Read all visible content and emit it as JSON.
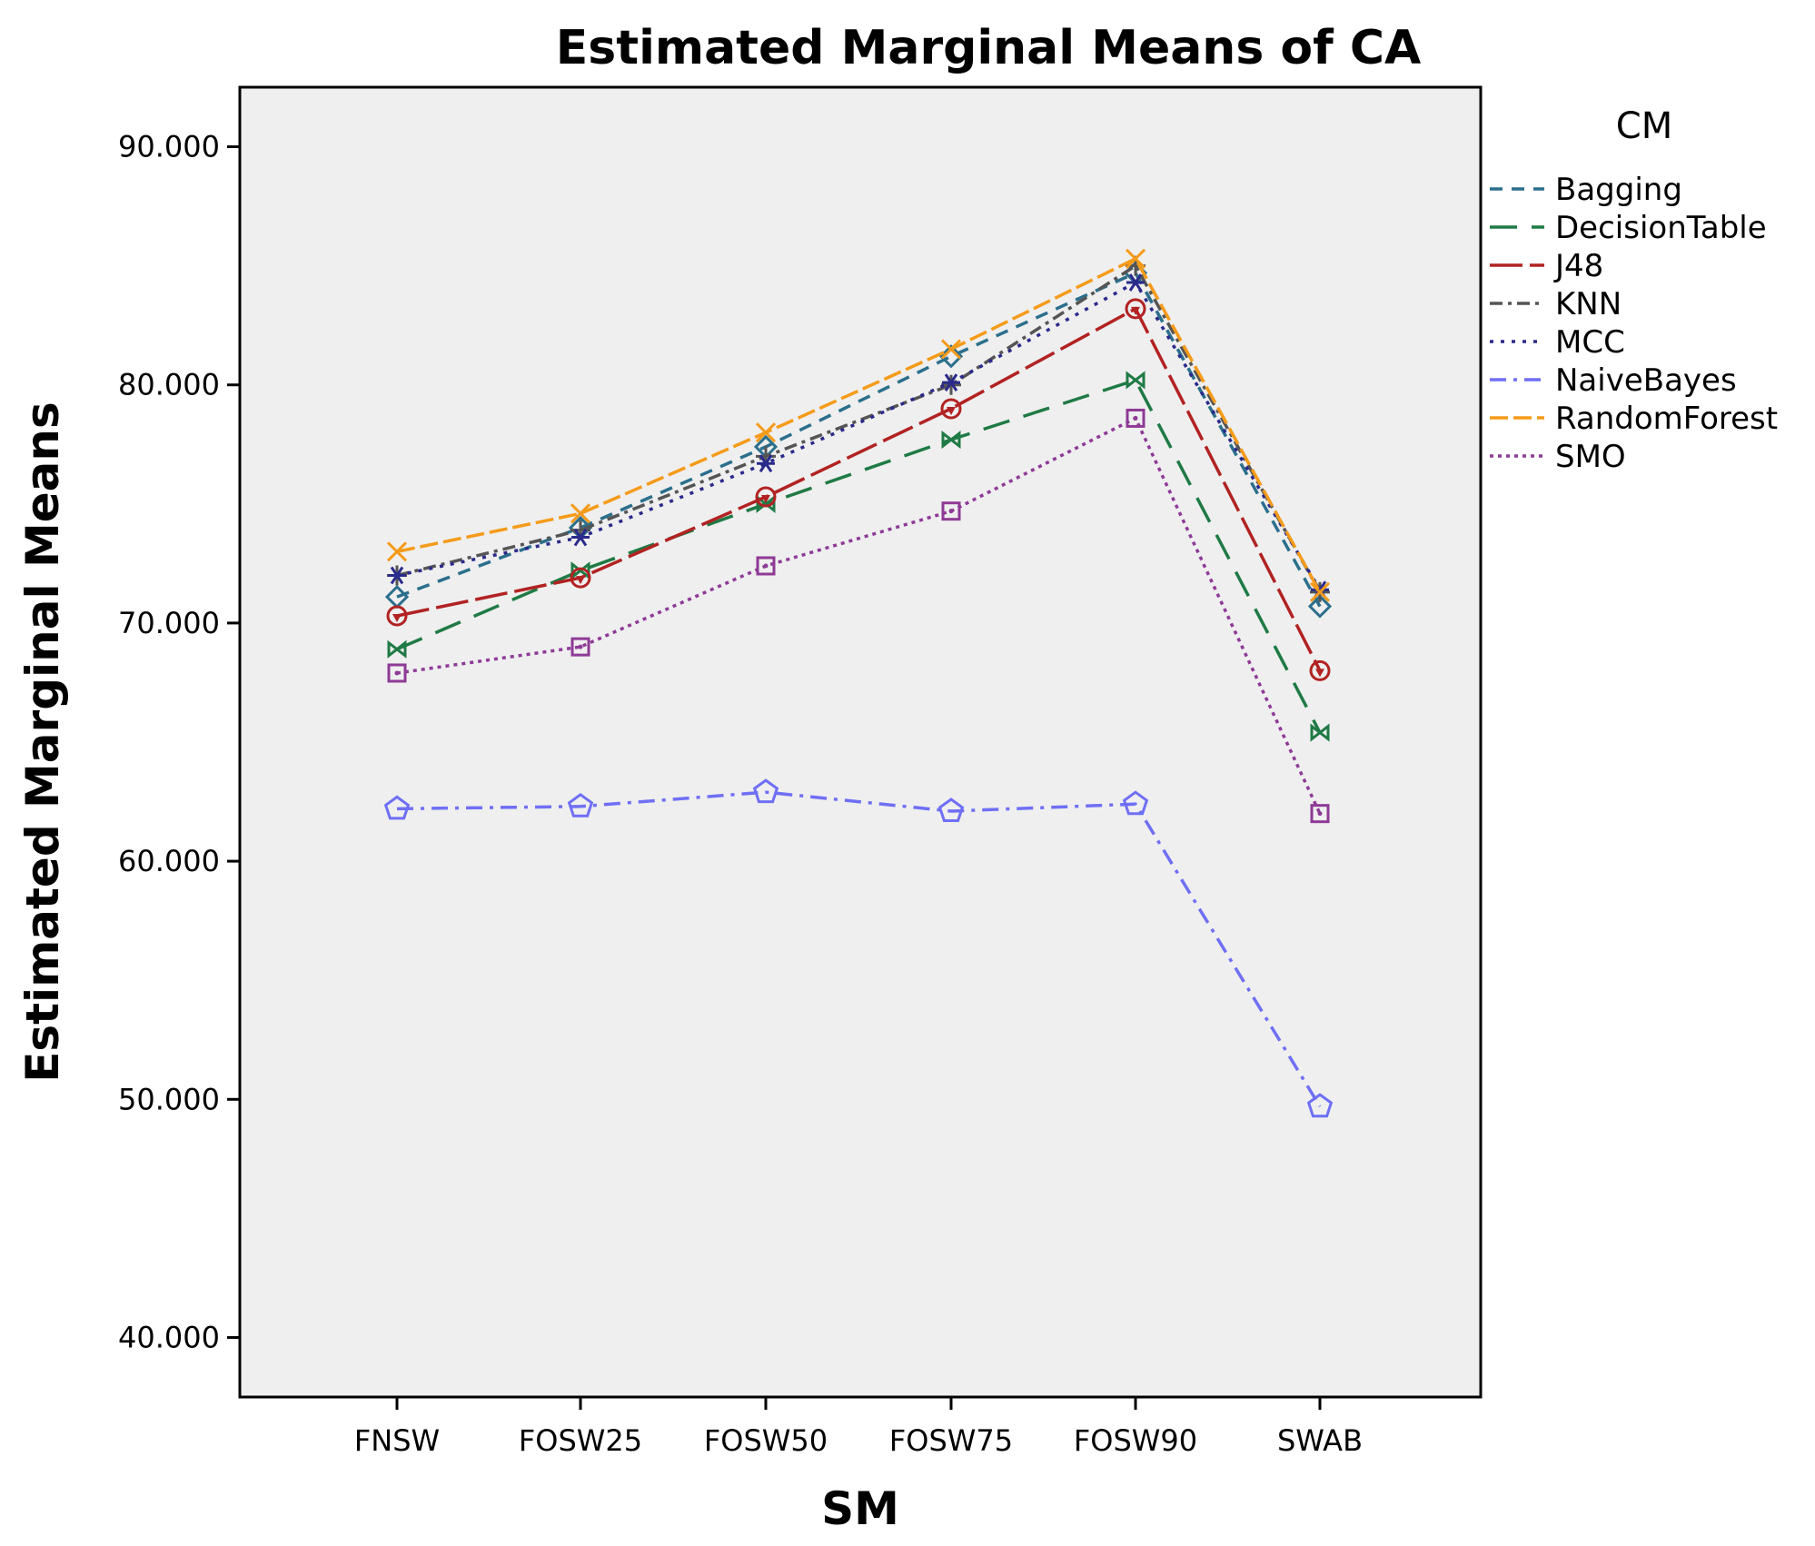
{
  "chart_data": {
    "type": "line",
    "title": "Estimated Marginal Means of CA",
    "xlabel": "SM",
    "ylabel": "Estimated Marginal Means",
    "ylim": [
      37.5,
      92.5
    ],
    "yticks": [
      "40.000",
      "50.000",
      "60.000",
      "70.000",
      "80.000",
      "90.000"
    ],
    "ytick_values": [
      40,
      50,
      60,
      70,
      80,
      90
    ],
    "categories": [
      "FNSW",
      "FOSW25",
      "FOSW50",
      "FOSW75",
      "FOSW90",
      "SWAB"
    ],
    "legend_title": "CM",
    "legend_position": "right",
    "series": [
      {
        "name": "Bagging",
        "color": "#2b6f8c",
        "dash": "14,10",
        "marker": "diamond",
        "values": [
          71.1,
          74.0,
          77.4,
          81.2,
          84.7,
          70.7
        ]
      },
      {
        "name": "DecisionTable",
        "color": "#1f7a45",
        "dash": "30,16",
        "marker": "bowtie",
        "values": [
          68.9,
          72.2,
          75.0,
          77.7,
          80.2,
          65.4
        ]
      },
      {
        "name": "J48",
        "color": "#b22222",
        "dash": "36,8",
        "marker": "triangle-circle",
        "values": [
          70.3,
          71.9,
          75.3,
          79.0,
          83.2,
          68.0
        ]
      },
      {
        "name": "KNN",
        "color": "#555555",
        "dash": "14,6,4,6",
        "marker": "plus",
        "values": [
          72.0,
          73.9,
          77.0,
          80.0,
          85.0,
          71.3
        ]
      },
      {
        "name": "MCC",
        "color": "#2a2a8c",
        "dash": "4,8",
        "marker": "star",
        "values": [
          72.0,
          73.6,
          76.7,
          80.1,
          84.3,
          71.4
        ]
      },
      {
        "name": "NaiveBayes",
        "color": "#6f6ff5",
        "dash": "18,8,4,8",
        "marker": "pentagon",
        "values": [
          62.2,
          62.3,
          62.9,
          62.1,
          62.4,
          49.7
        ]
      },
      {
        "name": "RandomForest",
        "color": "#f59b1a",
        "dash": "20,6",
        "marker": "x",
        "values": [
          73.0,
          74.6,
          78.0,
          81.5,
          85.3,
          71.3
        ]
      },
      {
        "name": "SMO",
        "color": "#8e3a96",
        "dash": "4,5",
        "marker": "square",
        "values": [
          67.9,
          69.0,
          72.4,
          74.7,
          78.6,
          62.0
        ]
      }
    ]
  }
}
